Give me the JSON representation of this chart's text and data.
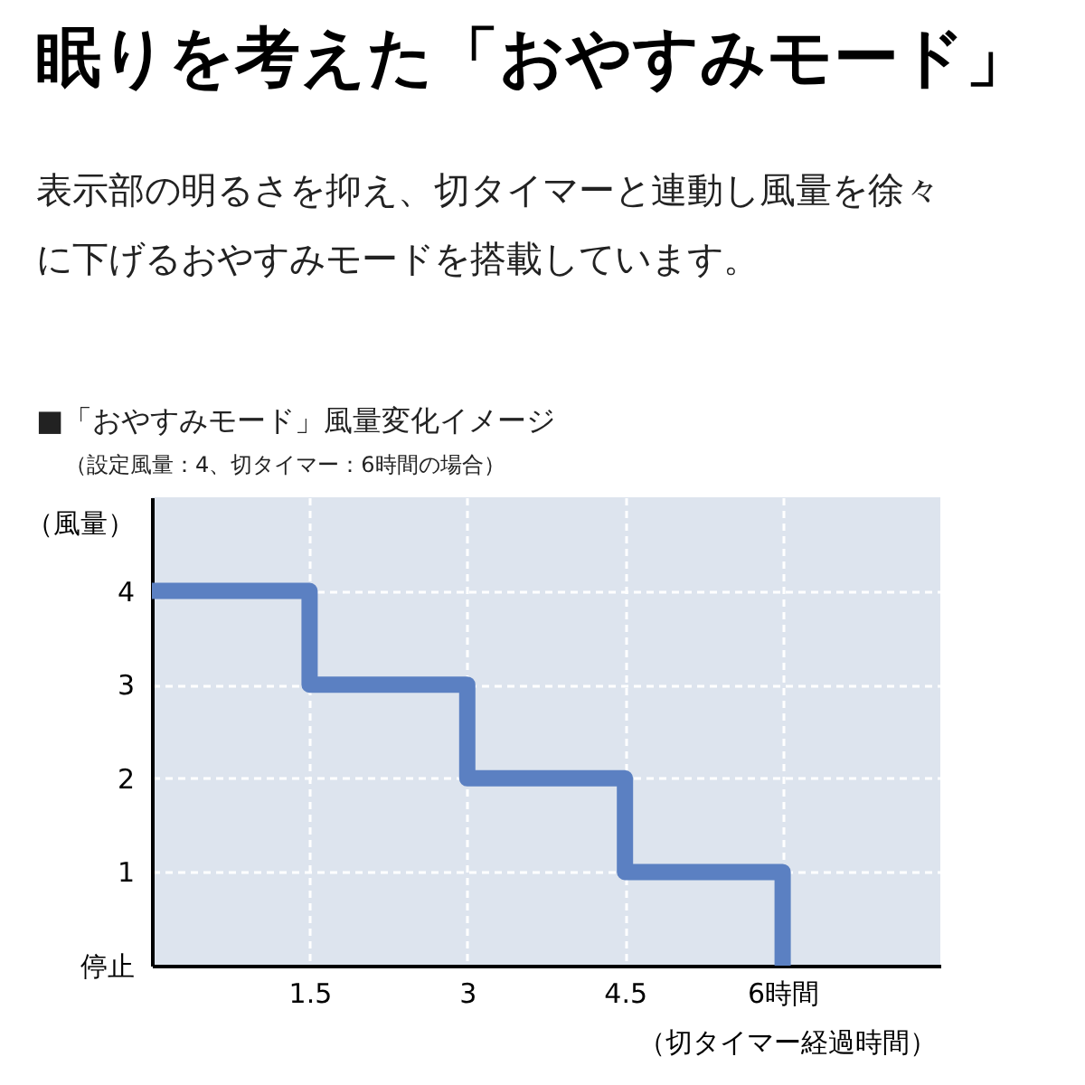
{
  "chart_data": {
    "type": "line",
    "title": "眠りを考えた「おやすみモード」",
    "subtitle": "表示部の明るさを抑え、切タイマーと連動し風量を徐々に下げるおやすみモードを搭載しています。",
    "annotations": [
      "■「おやすみモード」風量変化イメージ",
      "（設定風量：4、切タイマー：6時間の場合）"
    ],
    "xlabel": "（切タイマー経過時間）",
    "ylabel": "（風量）",
    "series": [
      {
        "color": "#5b80c2",
        "x": [
          0,
          1.5,
          1.5,
          3,
          3,
          4.5,
          4.5,
          6,
          6
        ],
        "values": [
          4,
          4,
          3,
          3,
          2,
          2,
          1,
          1,
          0
        ]
      }
    ],
    "xlim": [
      0,
      7.5
    ],
    "xticks": [
      1.5,
      3,
      4.5,
      {
        "value": 6,
        "label": "6時間"
      }
    ],
    "ylim": [
      0,
      5
    ],
    "yticks": [
      {
        "value": 0,
        "label": "停止"
      },
      1,
      2,
      3,
      4
    ],
    "grid": true,
    "line_style": "solid"
  }
}
